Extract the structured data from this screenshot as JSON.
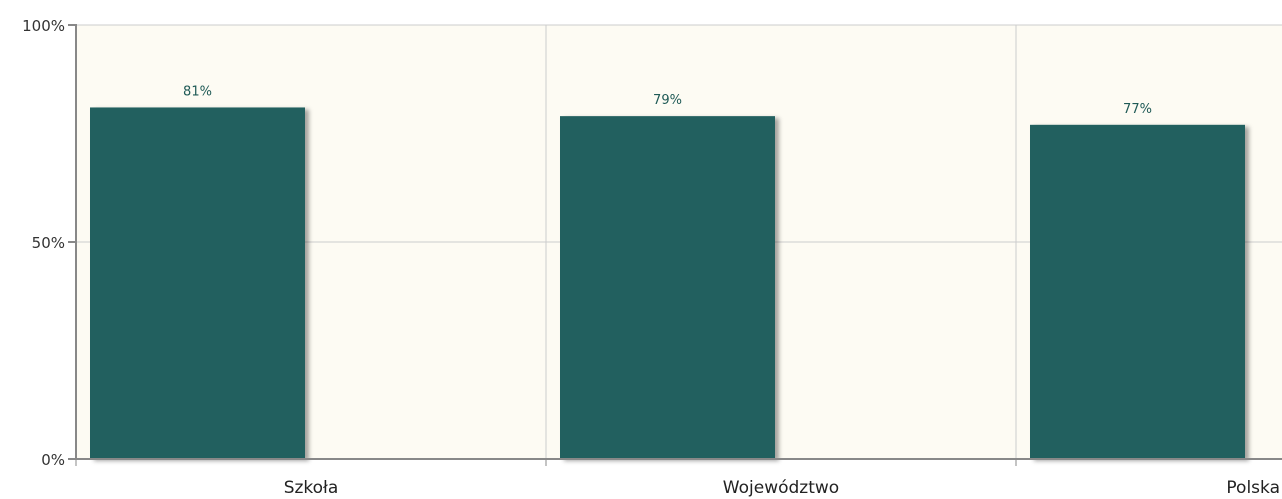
{
  "colors": {
    "plot_background": "#fdfbf3",
    "bar": "#22605e",
    "grid": "#cccccc",
    "axis": "#888888"
  },
  "chart_data": {
    "type": "bar",
    "categories": [
      "Szkoła",
      "Województwo",
      "Polska"
    ],
    "values": [
      81,
      79,
      77
    ],
    "value_labels": [
      "81%",
      "79%",
      "77%"
    ],
    "ylim": [
      0,
      100
    ],
    "yticks": [
      0,
      50,
      100
    ],
    "ytick_labels": [
      "0%",
      "50%",
      "100%"
    ],
    "grid": true,
    "legend": "none"
  }
}
